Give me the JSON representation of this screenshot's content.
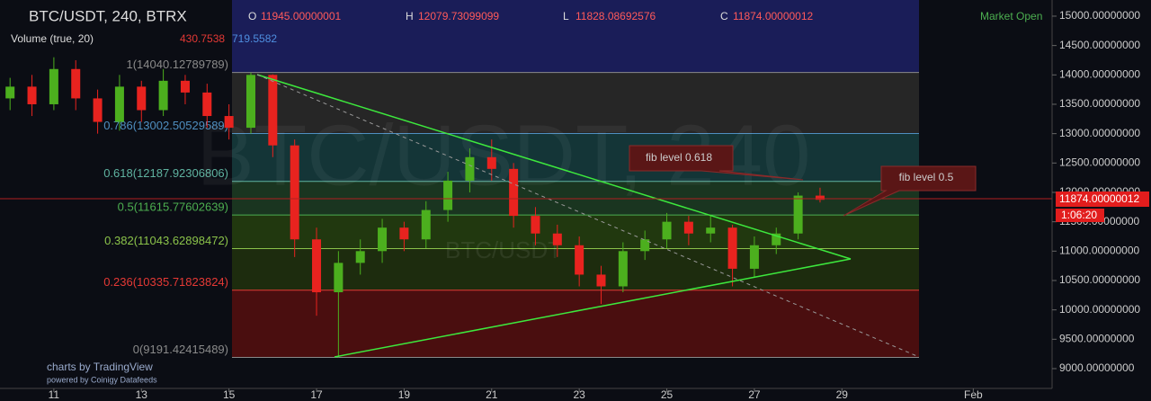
{
  "chart_data": {
    "type": "candlestick",
    "title": "BTC/USDT, 240, BTRX",
    "watermark": "BTC/USDT, 240",
    "watermark_small": "BTC/USDT",
    "ohlc_keys": [
      "O",
      "H",
      "L",
      "C"
    ],
    "volume_legend": {
      "label": "Volume (true, 20)",
      "values": [
        "430.7538",
        "719.5582"
      ]
    },
    "market_status": "Market Open",
    "countdown": "1:06:20",
    "branding": [
      "charts by TradingView",
      "powered by Coinigy Datafeeds"
    ],
    "annotations": [
      "fib level 0.618",
      "fib level 0.5"
    ],
    "up_color": "#4caf1e",
    "down_color": "#e8231f",
    "x": [
      10,
      10.5,
      11,
      11.5,
      12,
      12.5,
      13,
      13.5,
      14,
      14.5,
      15,
      15.5,
      16,
      16.5,
      17,
      17.5,
      18,
      18.5,
      19,
      19.5,
      20,
      20.5,
      21,
      21.5,
      22,
      22.5,
      23,
      23.5,
      24,
      24.5,
      25,
      25.5,
      26,
      26.5,
      27,
      27.5,
      28,
      28.5
    ],
    "open": [
      13600,
      13800,
      13500,
      14100,
      13600,
      13200,
      13800,
      13400,
      13900,
      13700,
      13300,
      13100,
      14000,
      12800,
      11200,
      10300,
      10800,
      11000,
      11400,
      11200,
      11700,
      12200,
      12600,
      12400,
      11600,
      11300,
      11100,
      10600,
      10400,
      11000,
      11200,
      11500,
      11300,
      11400,
      10700,
      11100,
      11300,
      11945.00000001
    ],
    "high": [
      13950,
      14000,
      14300,
      14250,
      13750,
      14000,
      13900,
      14100,
      14000,
      13850,
      13500,
      14040,
      14010,
      12900,
      11400,
      11000,
      11200,
      11550,
      11500,
      11850,
      12350,
      12750,
      12900,
      12500,
      11750,
      11450,
      11250,
      10750,
      11150,
      11350,
      11650,
      11600,
      11600,
      11450,
      11250,
      11400,
      12000,
      12079.73099099
    ],
    "low": [
      13400,
      13300,
      13400,
      13400,
      13000,
      13050,
      13200,
      13300,
      13500,
      13100,
      12900,
      13000,
      12600,
      10900,
      9900,
      9191.42415489,
      10600,
      10800,
      11000,
      11050,
      11500,
      12000,
      12200,
      11400,
      11100,
      10900,
      10400,
      10100,
      10300,
      10850,
      11050,
      11100,
      11150,
      10400,
      10550,
      10950,
      11200,
      11828.08692576
    ],
    "close": [
      13800,
      13500,
      14100,
      13600,
      13200,
      13800,
      13400,
      13900,
      13700,
      13300,
      13100,
      14000,
      12800,
      11200,
      10300,
      10800,
      11000,
      11400,
      11200,
      11700,
      12200,
      12600,
      12400,
      11600,
      11300,
      11100,
      10600,
      10400,
      11000,
      11200,
      11500,
      11300,
      11400,
      10700,
      11100,
      11300,
      11945,
      11874.00000012
    ],
    "xlim": [
      9.77,
      33.8
    ],
    "ylim": [
      8663,
      15275
    ],
    "xticks": [
      11,
      13,
      15,
      17,
      19,
      21,
      23,
      25,
      27,
      29,
      {
        "value": 32,
        "label": "Feb"
      }
    ],
    "yticks": [
      {
        "value": 9000,
        "label": "9000.00000000"
      },
      {
        "value": 9500,
        "label": "9500.00000000"
      },
      {
        "value": 10000,
        "label": "10000.00000000"
      },
      {
        "value": 10500,
        "label": "10500.00000000"
      },
      {
        "value": 11000,
        "label": "11000.00000000"
      },
      {
        "value": 11500,
        "label": "11500.00000000"
      },
      {
        "value": 12000,
        "label": "12000.00000000"
      },
      {
        "value": 12500,
        "label": "12500.00000000"
      },
      {
        "value": 13000,
        "label": "13000.00000000"
      },
      {
        "value": 13500,
        "label": "13500.00000000"
      },
      {
        "value": 14000,
        "label": "14000.00000000"
      },
      {
        "value": 14500,
        "label": "14500.00000000"
      },
      {
        "value": 15000,
        "label": "15000.00000000"
      }
    ],
    "fib_levels": [
      {
        "value": 14040.12789789,
        "label": "1(14040.12789789)",
        "color": "#8a8a8a"
      },
      {
        "value": 13002.50529589,
        "label": "0.786(13002.50529589)",
        "color": "#4f8fc0"
      },
      {
        "value": 12187.92306806,
        "label": "0.618(12187.92306806)",
        "color": "#5fb3a0"
      },
      {
        "value": 11615.77602639,
        "label": "0.5(11615.77602639)",
        "color": "#4caf50"
      },
      {
        "value": 11043.62898472,
        "label": "0.382(11043.62898472)",
        "color": "#8bc34a"
      },
      {
        "value": 10335.71823824,
        "label": "0.236(10335.71823824)",
        "color": "#e53935"
      },
      {
        "value": 9191.42415489,
        "label": "0(9191.42415489)",
        "color": "#8a8a8a"
      }
    ],
    "fib_fills": [
      "#262626",
      "#143537",
      "#1a3520",
      "#21380f",
      "#1d2c0e",
      "#4a0e0f"
    ]
  }
}
